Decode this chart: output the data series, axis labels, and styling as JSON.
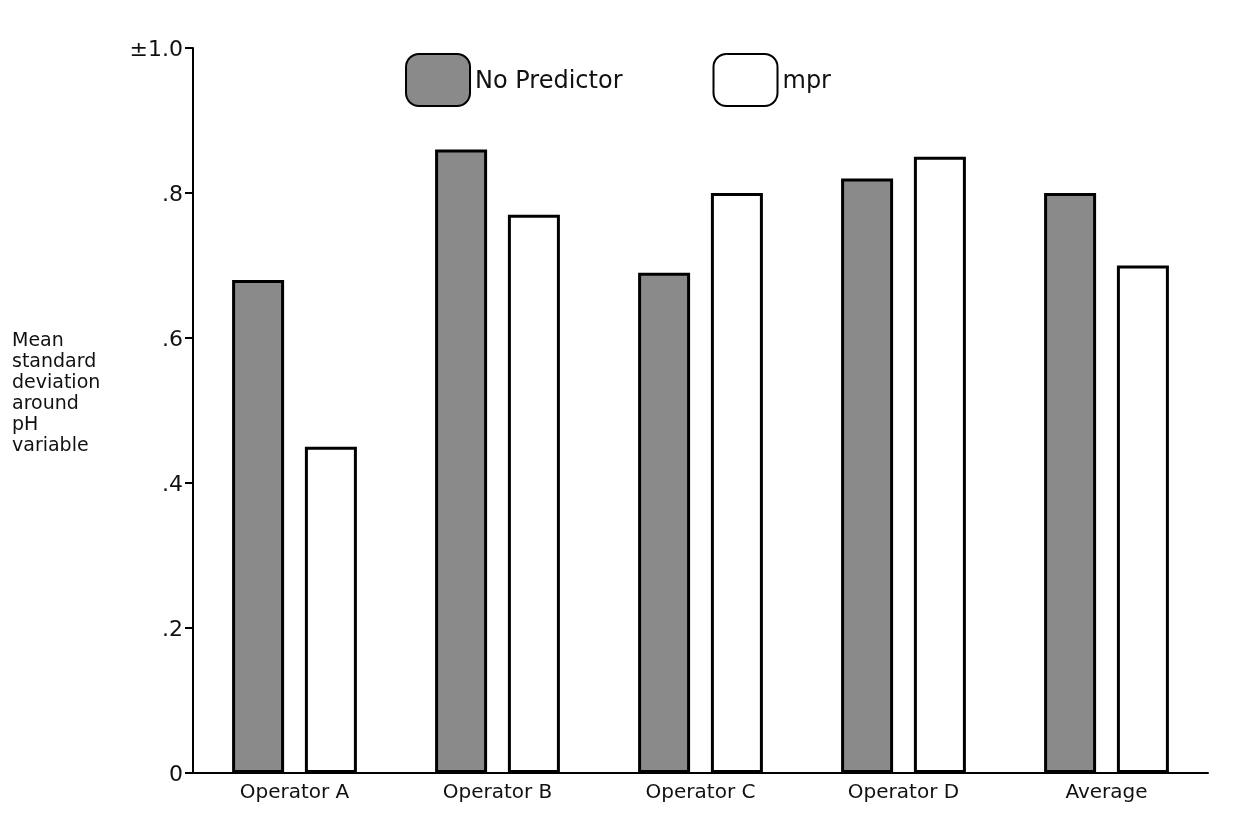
{
  "chart_data": {
    "type": "bar",
    "ylabel": "Mean\nstandard\ndeviation\naround\npH\nvariable",
    "categories": [
      "Operator A",
      "Operator B",
      "Operator C",
      "Operator D",
      "Average"
    ],
    "series": [
      {
        "name": "No Predictor",
        "color": "#8a8a8a",
        "values": [
          0.68,
          0.86,
          0.69,
          0.82,
          0.8
        ]
      },
      {
        "name": "mpr",
        "color": "#ffffff",
        "values": [
          0.45,
          0.77,
          0.8,
          0.85,
          0.7
        ]
      }
    ],
    "ylim": [
      0,
      1.0
    ],
    "yticks": [
      0,
      {
        "value": 0.2,
        "label": ".2"
      },
      {
        "value": 0.4,
        "label": ".4"
      },
      {
        "value": 0.6,
        "label": ".6"
      },
      {
        "value": 0.8,
        "label": ".8"
      },
      {
        "value": 1.0,
        "label": "±1.0"
      }
    ],
    "grid": false,
    "legend": "top"
  }
}
